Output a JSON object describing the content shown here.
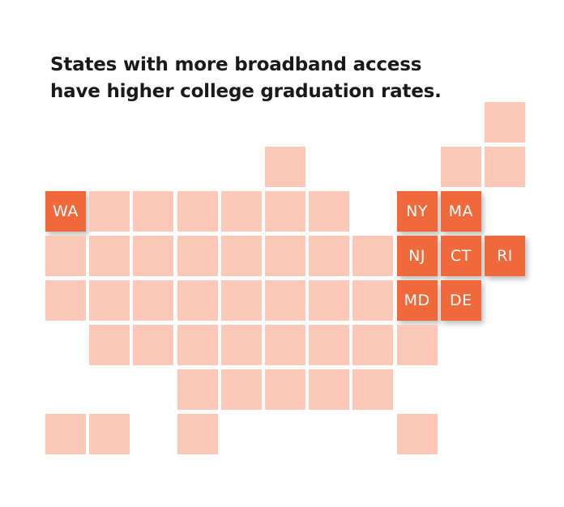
{
  "title": [
    "States with more broadband access",
    "have higher college graduation rates."
  ],
  "highlighted_states": [
    "WA",
    "NY",
    "MA",
    "NJ",
    "CT",
    "RI",
    "MD",
    "DE"
  ]
}
